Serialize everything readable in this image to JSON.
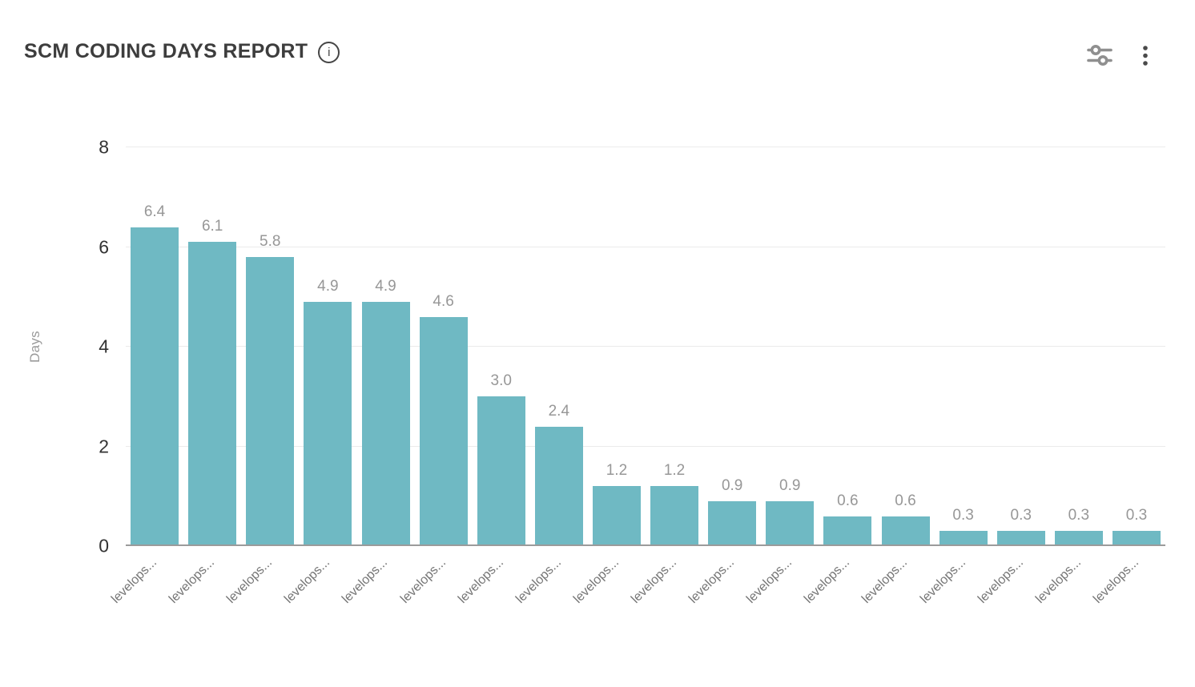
{
  "header": {
    "title": "SCM CODING DAYS REPORT",
    "info_icon_glyph": "i"
  },
  "colors": {
    "bar": "#6fb9c3",
    "grid": "#ebebeb",
    "axis_baseline": "#9b9b9b",
    "tick_label": "#333333",
    "value_label": "#979797",
    "x_label": "#757575",
    "title": "#3d3d3d",
    "icon_gray": "#8f8f8f",
    "kebab_dark": "#4a4a4a"
  },
  "chart_data": {
    "type": "bar",
    "title": "SCM CODING DAYS REPORT",
    "xlabel": "",
    "ylabel": "Days",
    "ylim": [
      0,
      8
    ],
    "yticks": [
      0,
      2,
      4,
      6,
      8
    ],
    "grid": true,
    "legend": false,
    "categories": [
      "levelops...",
      "levelops...",
      "levelops...",
      "levelops...",
      "levelops...",
      "levelops...",
      "levelops...",
      "levelops...",
      "levelops...",
      "levelops...",
      "levelops...",
      "levelops...",
      "levelops...",
      "levelops...",
      "levelops...",
      "levelops...",
      "levelops...",
      "levelops..."
    ],
    "values": [
      6.4,
      6.1,
      5.8,
      4.9,
      4.9,
      4.6,
      3.0,
      2.4,
      1.2,
      1.2,
      0.9,
      0.9,
      0.6,
      0.6,
      0.3,
      0.3,
      0.3,
      0.3
    ],
    "value_labels": [
      "6.4",
      "6.1",
      "5.8",
      "4.9",
      "4.9",
      "4.6",
      "3.0",
      "2.4",
      "1.2",
      "1.2",
      "0.9",
      "0.9",
      "0.6",
      "0.6",
      "0.3",
      "0.3",
      "0.3",
      "0.3"
    ]
  }
}
